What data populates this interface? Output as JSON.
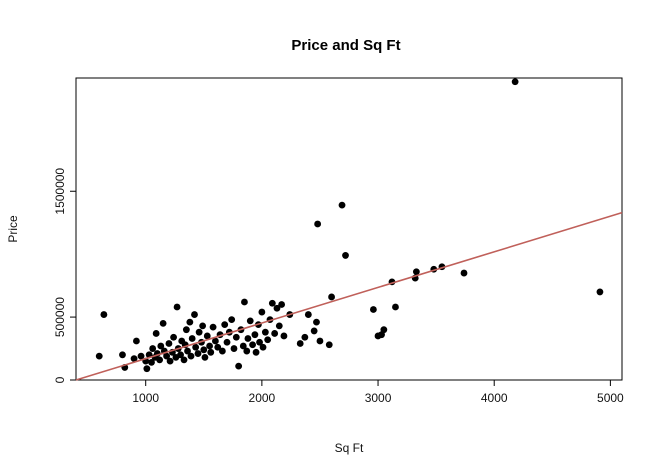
{
  "chart_data": {
    "type": "scatter",
    "title": "Price and Sq Ft",
    "xlabel": "Sq Ft",
    "ylabel": "Price",
    "xlim": [
      400,
      5100
    ],
    "ylim": [
      0,
      2400000
    ],
    "x_ticks": [
      1000,
      2000,
      3000,
      4000,
      5000
    ],
    "x_tick_labels": [
      "1000",
      "2000",
      "3000",
      "4000",
      "5000"
    ],
    "y_ticks": [
      0,
      500000,
      1500000
    ],
    "y_tick_labels": [
      "0",
      "500000",
      "1500000"
    ],
    "grid": false,
    "point_color": "#000000",
    "line_color": "#c0605a",
    "trend_line": {
      "x": [
        400,
        5100
      ],
      "y": [
        0,
        1330000
      ]
    },
    "points": [
      {
        "x": 600,
        "y": 190000
      },
      {
        "x": 640,
        "y": 520000
      },
      {
        "x": 800,
        "y": 200000
      },
      {
        "x": 820,
        "y": 100000
      },
      {
        "x": 900,
        "y": 170000
      },
      {
        "x": 920,
        "y": 310000
      },
      {
        "x": 960,
        "y": 190000
      },
      {
        "x": 1000,
        "y": 150000
      },
      {
        "x": 1010,
        "y": 90000
      },
      {
        "x": 1030,
        "y": 200000
      },
      {
        "x": 1050,
        "y": 140000
      },
      {
        "x": 1060,
        "y": 250000
      },
      {
        "x": 1080,
        "y": 180000
      },
      {
        "x": 1090,
        "y": 370000
      },
      {
        "x": 1100,
        "y": 210000
      },
      {
        "x": 1120,
        "y": 160000
      },
      {
        "x": 1130,
        "y": 270000
      },
      {
        "x": 1150,
        "y": 450000
      },
      {
        "x": 1160,
        "y": 230000
      },
      {
        "x": 1180,
        "y": 190000
      },
      {
        "x": 1200,
        "y": 290000
      },
      {
        "x": 1210,
        "y": 150000
      },
      {
        "x": 1230,
        "y": 220000
      },
      {
        "x": 1240,
        "y": 340000
      },
      {
        "x": 1260,
        "y": 180000
      },
      {
        "x": 1270,
        "y": 580000
      },
      {
        "x": 1280,
        "y": 250000
      },
      {
        "x": 1300,
        "y": 200000
      },
      {
        "x": 1310,
        "y": 310000
      },
      {
        "x": 1330,
        "y": 160000
      },
      {
        "x": 1340,
        "y": 280000
      },
      {
        "x": 1350,
        "y": 400000
      },
      {
        "x": 1360,
        "y": 230000
      },
      {
        "x": 1380,
        "y": 460000
      },
      {
        "x": 1390,
        "y": 190000
      },
      {
        "x": 1400,
        "y": 330000
      },
      {
        "x": 1420,
        "y": 520000
      },
      {
        "x": 1430,
        "y": 260000
      },
      {
        "x": 1450,
        "y": 210000
      },
      {
        "x": 1460,
        "y": 380000
      },
      {
        "x": 1480,
        "y": 300000
      },
      {
        "x": 1490,
        "y": 430000
      },
      {
        "x": 1500,
        "y": 240000
      },
      {
        "x": 1510,
        "y": 180000
      },
      {
        "x": 1530,
        "y": 350000
      },
      {
        "x": 1550,
        "y": 270000
      },
      {
        "x": 1560,
        "y": 220000
      },
      {
        "x": 1580,
        "y": 420000
      },
      {
        "x": 1600,
        "y": 310000
      },
      {
        "x": 1620,
        "y": 260000
      },
      {
        "x": 1640,
        "y": 360000
      },
      {
        "x": 1660,
        "y": 230000
      },
      {
        "x": 1680,
        "y": 440000
      },
      {
        "x": 1700,
        "y": 300000
      },
      {
        "x": 1720,
        "y": 380000
      },
      {
        "x": 1740,
        "y": 480000
      },
      {
        "x": 1760,
        "y": 250000
      },
      {
        "x": 1780,
        "y": 340000
      },
      {
        "x": 1800,
        "y": 110000
      },
      {
        "x": 1820,
        "y": 400000
      },
      {
        "x": 1840,
        "y": 270000
      },
      {
        "x": 1850,
        "y": 620000
      },
      {
        "x": 1870,
        "y": 230000
      },
      {
        "x": 1880,
        "y": 330000
      },
      {
        "x": 1900,
        "y": 470000
      },
      {
        "x": 1920,
        "y": 280000
      },
      {
        "x": 1940,
        "y": 360000
      },
      {
        "x": 1950,
        "y": 220000
      },
      {
        "x": 1970,
        "y": 440000
      },
      {
        "x": 1980,
        "y": 300000
      },
      {
        "x": 2000,
        "y": 540000
      },
      {
        "x": 2010,
        "y": 260000
      },
      {
        "x": 2030,
        "y": 380000
      },
      {
        "x": 2050,
        "y": 320000
      },
      {
        "x": 2070,
        "y": 480000
      },
      {
        "x": 2090,
        "y": 610000
      },
      {
        "x": 2110,
        "y": 370000
      },
      {
        "x": 2130,
        "y": 570000
      },
      {
        "x": 2150,
        "y": 430000
      },
      {
        "x": 2170,
        "y": 600000
      },
      {
        "x": 2190,
        "y": 350000
      },
      {
        "x": 2240,
        "y": 520000
      },
      {
        "x": 2330,
        "y": 290000
      },
      {
        "x": 2370,
        "y": 340000
      },
      {
        "x": 2400,
        "y": 520000
      },
      {
        "x": 2450,
        "y": 390000
      },
      {
        "x": 2470,
        "y": 460000
      },
      {
        "x": 2480,
        "y": 1240000
      },
      {
        "x": 2500,
        "y": 310000
      },
      {
        "x": 2580,
        "y": 280000
      },
      {
        "x": 2600,
        "y": 660000
      },
      {
        "x": 2690,
        "y": 1390000
      },
      {
        "x": 2720,
        "y": 990000
      },
      {
        "x": 2960,
        "y": 560000
      },
      {
        "x": 3000,
        "y": 350000
      },
      {
        "x": 3030,
        "y": 360000
      },
      {
        "x": 3050,
        "y": 400000
      },
      {
        "x": 3120,
        "y": 780000
      },
      {
        "x": 3150,
        "y": 580000
      },
      {
        "x": 3320,
        "y": 810000
      },
      {
        "x": 3330,
        "y": 860000
      },
      {
        "x": 3480,
        "y": 880000
      },
      {
        "x": 3550,
        "y": 900000
      },
      {
        "x": 3740,
        "y": 850000
      },
      {
        "x": 4180,
        "y": 2370000
      },
      {
        "x": 4910,
        "y": 700000
      }
    ]
  }
}
